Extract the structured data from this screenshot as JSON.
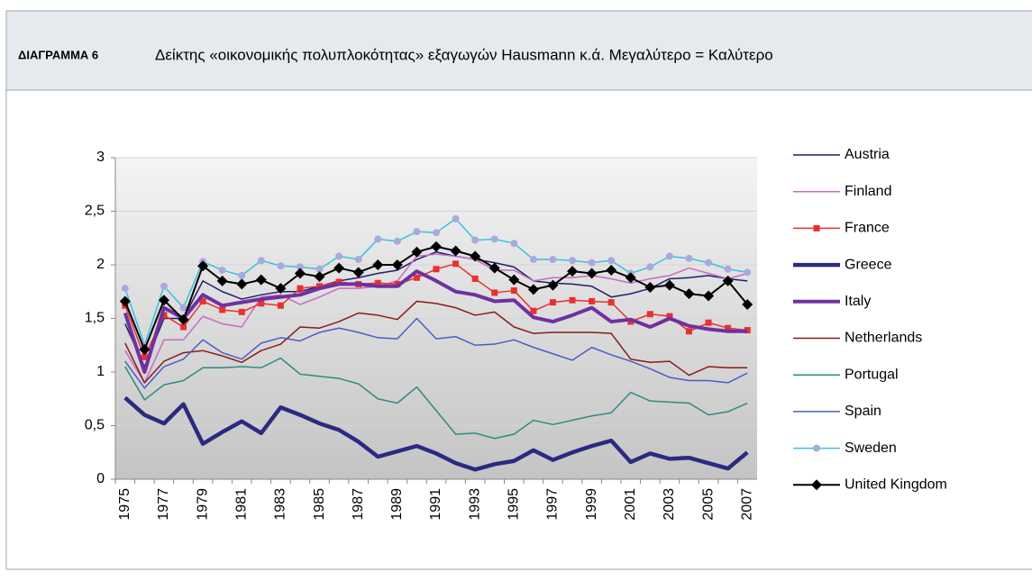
{
  "header": {
    "label": "ΔΙΑΓΡΑΜΜΑ 6",
    "title": "Δείκτης «οικονομικής πολυπλοκότητας» εξαγωγών Hausmann κ.ά. Μεγαλύτερο = Καλύτερο"
  },
  "chart_data": {
    "type": "line",
    "categories": [
      "1975",
      null,
      "1977",
      null,
      "1979",
      null,
      "1981",
      null,
      "1983",
      null,
      "1985",
      null,
      "1987",
      null,
      "1989",
      null,
      "1991",
      null,
      "1993",
      null,
      "1995",
      null,
      "1997",
      null,
      "1999",
      null,
      "2001",
      null,
      "2003",
      null,
      "2005",
      null,
      "2007"
    ],
    "ylim": [
      0,
      3
    ],
    "yticks": [
      0,
      {
        "value": 0.5,
        "label": "0,5"
      },
      1,
      {
        "value": 1.5,
        "label": "1,5"
      },
      2,
      {
        "value": 2.5,
        "label": "2,5"
      },
      3
    ],
    "grid": true,
    "legend": "right",
    "series": [
      {
        "name": "Austria",
        "color": "#1f1f6e",
        "width": 1.5,
        "marker": "none",
        "values": [
          1.45,
          1.05,
          1.5,
          1.5,
          1.85,
          1.75,
          1.68,
          1.72,
          1.75,
          1.75,
          1.8,
          1.85,
          1.88,
          1.92,
          1.95,
          2.05,
          2.12,
          2.08,
          2.05,
          2.02,
          1.98,
          1.85,
          1.83,
          1.82,
          1.8,
          1.7,
          1.73,
          1.78,
          1.87,
          1.88,
          1.9,
          1.87,
          1.85
        ]
      },
      {
        "name": "Finland",
        "color": "#c86bc0",
        "width": 1.5,
        "marker": "none",
        "values": [
          1.2,
          0.9,
          1.3,
          1.3,
          1.52,
          1.45,
          1.42,
          1.7,
          1.72,
          1.63,
          1.7,
          1.78,
          1.78,
          1.8,
          1.85,
          2.08,
          2.1,
          2.08,
          2.05,
          1.95,
          1.95,
          1.85,
          1.88,
          1.88,
          1.9,
          1.87,
          1.83,
          1.87,
          1.9,
          1.97,
          1.92,
          1.87,
          1.92
        ]
      },
      {
        "name": "France",
        "color": "#e8312f",
        "width": 1.5,
        "marker": "square",
        "values": [
          1.62,
          1.14,
          1.53,
          1.42,
          1.66,
          1.58,
          1.56,
          1.64,
          1.62,
          1.78,
          1.8,
          1.84,
          1.82,
          1.83,
          1.82,
          1.88,
          1.96,
          2.01,
          1.87,
          1.74,
          1.76,
          1.57,
          1.65,
          1.67,
          1.66,
          1.65,
          1.47,
          1.54,
          1.52,
          1.38,
          1.46,
          1.41,
          1.39
        ]
      },
      {
        "name": "Greece",
        "color": "#2a2a80",
        "width": 4.5,
        "marker": "none",
        "values": [
          0.76,
          0.6,
          0.52,
          0.7,
          0.33,
          0.44,
          0.54,
          0.43,
          0.67,
          0.6,
          0.52,
          0.46,
          0.35,
          0.21,
          0.26,
          0.31,
          0.24,
          0.15,
          0.09,
          0.14,
          0.17,
          0.27,
          0.18,
          0.25,
          0.31,
          0.36,
          0.16,
          0.24,
          0.19,
          0.2,
          0.15,
          0.1,
          0.25
        ]
      },
      {
        "name": "Italy",
        "color": "#7030a0",
        "width": 4,
        "marker": "none",
        "values": [
          1.55,
          1.0,
          1.6,
          1.5,
          1.72,
          1.62,
          1.65,
          1.68,
          1.7,
          1.72,
          1.78,
          1.82,
          1.82,
          1.8,
          1.8,
          1.94,
          1.85,
          1.75,
          1.72,
          1.66,
          1.67,
          1.51,
          1.47,
          1.53,
          1.6,
          1.47,
          1.49,
          1.42,
          1.5,
          1.43,
          1.4,
          1.38,
          1.38
        ]
      },
      {
        "name": "Netherlands",
        "color": "#8b1a1a",
        "width": 1.5,
        "marker": "none",
        "values": [
          1.27,
          0.9,
          1.1,
          1.18,
          1.2,
          1.15,
          1.09,
          1.2,
          1.26,
          1.42,
          1.41,
          1.47,
          1.55,
          1.53,
          1.49,
          1.66,
          1.64,
          1.6,
          1.53,
          1.56,
          1.42,
          1.36,
          1.37,
          1.37,
          1.37,
          1.36,
          1.12,
          1.09,
          1.1,
          0.97,
          1.05,
          1.04,
          1.04
        ]
      },
      {
        "name": "Portugal",
        "color": "#2e8b80",
        "width": 1.5,
        "marker": "none",
        "values": [
          1.05,
          0.74,
          0.88,
          0.92,
          1.04,
          1.04,
          1.05,
          1.04,
          1.13,
          0.98,
          0.96,
          0.94,
          0.89,
          0.75,
          0.71,
          0.86,
          0.64,
          0.42,
          0.43,
          0.38,
          0.42,
          0.55,
          0.51,
          0.55,
          0.59,
          0.62,
          0.81,
          0.73,
          0.72,
          0.71,
          0.6,
          0.63,
          0.71
        ]
      },
      {
        "name": "Spain",
        "color": "#4a5cc8",
        "width": 1.5,
        "marker": "none",
        "values": [
          1.1,
          0.85,
          1.05,
          1.12,
          1.3,
          1.18,
          1.12,
          1.27,
          1.32,
          1.29,
          1.37,
          1.41,
          1.37,
          1.32,
          1.31,
          1.5,
          1.31,
          1.33,
          1.25,
          1.26,
          1.3,
          1.23,
          1.17,
          1.11,
          1.23,
          1.16,
          1.1,
          1.03,
          0.95,
          0.92,
          0.92,
          0.9,
          0.99
        ]
      },
      {
        "name": "Sweden",
        "color": "#33c4e0",
        "width": 1.5,
        "marker": "circle",
        "marker_color": "#a9a9e0",
        "values": [
          1.78,
          1.25,
          1.8,
          1.6,
          2.03,
          1.95,
          1.9,
          2.04,
          1.99,
          1.98,
          1.96,
          2.08,
          2.05,
          2.24,
          2.22,
          2.31,
          2.3,
          2.43,
          2.23,
          2.24,
          2.2,
          2.05,
          2.05,
          2.04,
          2.02,
          2.04,
          1.92,
          1.98,
          2.08,
          2.06,
          2.02,
          1.96,
          1.93
        ]
      },
      {
        "name": "United Kingdom",
        "color": "#000000",
        "width": 2,
        "marker": "diamond",
        "values": [
          1.66,
          1.21,
          1.67,
          1.49,
          1.99,
          1.85,
          1.82,
          1.86,
          1.78,
          1.92,
          1.89,
          1.97,
          1.93,
          2.0,
          2.0,
          2.12,
          2.17,
          2.13,
          2.08,
          1.97,
          1.86,
          1.77,
          1.81,
          1.94,
          1.92,
          1.95,
          1.88,
          1.79,
          1.81,
          1.73,
          1.71,
          1.85,
          1.63
        ]
      }
    ]
  }
}
